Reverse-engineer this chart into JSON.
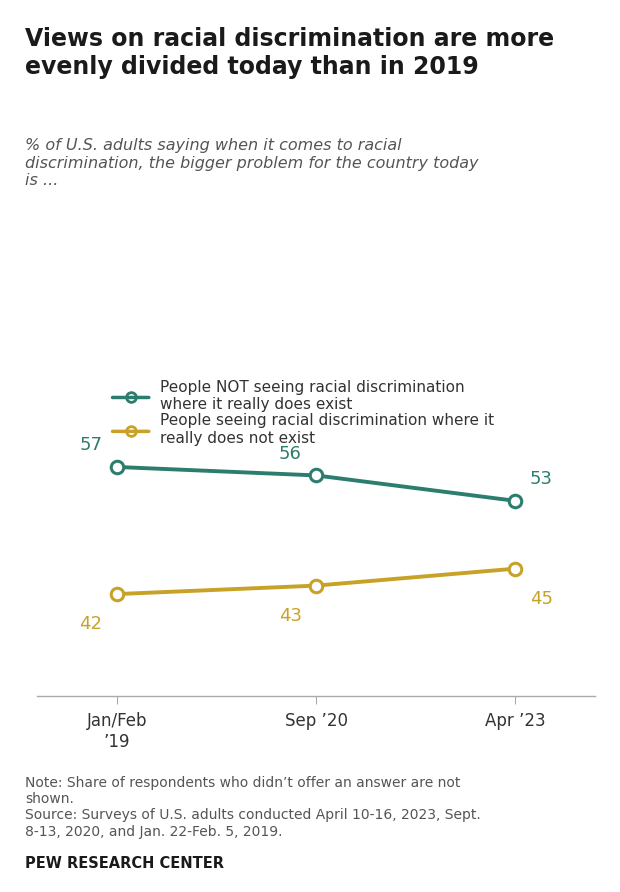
{
  "title": "Views on racial discrimination are more\nevenly divided today than in 2019",
  "subtitle": "% of U.S. adults saying when it comes to racial\ndiscrimination, the bigger problem for the country today\nis ...",
  "x_labels": [
    "Jan/Feb\n’19",
    "Sep ’20",
    "Apr ’23"
  ],
  "x_values": [
    0,
    1,
    2
  ],
  "green_values": [
    57,
    56,
    53
  ],
  "gold_values": [
    42,
    43,
    45
  ],
  "green_color": "#2d7d6e",
  "gold_color": "#c8a227",
  "green_label_line1": "People NOT seeing racial discrimination",
  "green_label_line2": "where it really ",
  "green_label_does": "does",
  "green_label_line2b": " exist",
  "gold_label_line1": "People seeing racial discrimination where it",
  "gold_label_line2": "really does ",
  "gold_label_not": "not",
  "gold_label_line2b": " exist",
  "note": "Note: Share of respondents who didn’t offer an answer are not\nshown.\nSource: Surveys of U.S. adults conducted April 10-16, 2023, Sept.\n8-13, 2020, and Jan. 22-Feb. 5, 2019.",
  "footer": "PEW RESEARCH CENTER",
  "background_color": "#ffffff",
  "ylim": [
    30,
    70
  ],
  "marker_size": 9,
  "line_width": 2.8
}
